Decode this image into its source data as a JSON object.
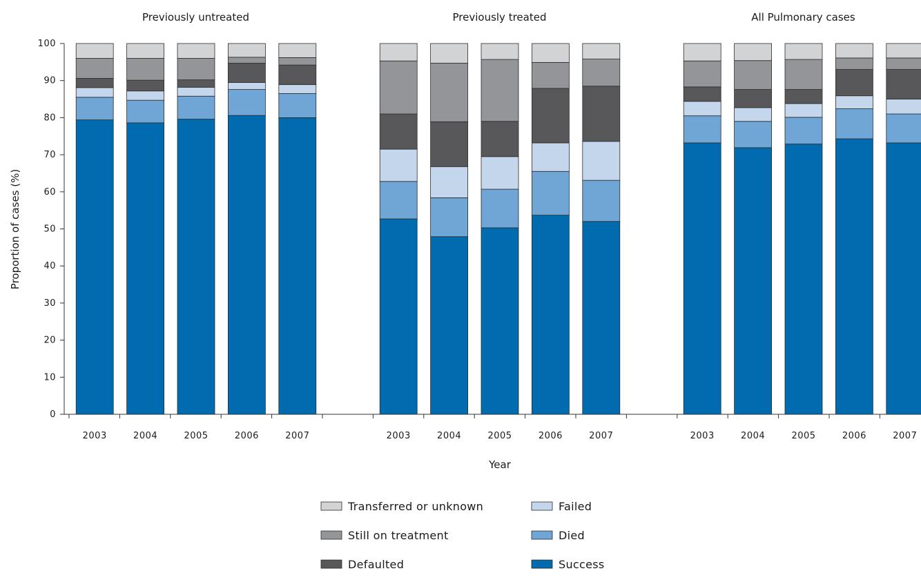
{
  "chart_data": {
    "type": "bar",
    "stacked": true,
    "xlabel": "Year",
    "ylabel": "Proportion of cases (%)",
    "ylim": [
      0,
      100
    ],
    "yticks": [
      0,
      10,
      20,
      30,
      40,
      50,
      60,
      70,
      80,
      90,
      100
    ],
    "grid": false,
    "legend_position": "bottom-center",
    "series": [
      {
        "name": "Success",
        "color": "#006bae"
      },
      {
        "name": "Died",
        "color": "#6fa6d6"
      },
      {
        "name": "Failed",
        "color": "#c3d6ec"
      },
      {
        "name": "Defaulted",
        "color": "#58585a"
      },
      {
        "name": "Still on treatment",
        "color": "#939598"
      },
      {
        "name": "Transferred or unknown",
        "color": "#d2d3d5"
      }
    ],
    "groups": [
      {
        "title": "Previously untreated",
        "categories": [
          "2003",
          "2004",
          "2005",
          "2006",
          "2007"
        ],
        "values": {
          "Success": [
            79.4,
            78.6,
            79.6,
            80.6,
            80.0
          ],
          "Died": [
            6.1,
            6.1,
            6.2,
            7.0,
            6.5
          ],
          "Failed": [
            2.6,
            2.5,
            2.4,
            1.9,
            2.4
          ],
          "Defaulted": [
            2.5,
            2.9,
            2.0,
            5.2,
            5.3
          ],
          "Still on treatment": [
            5.4,
            5.9,
            5.8,
            1.6,
            2.0
          ],
          "Transferred or unknown": [
            4.0,
            4.0,
            4.0,
            3.7,
            3.8
          ]
        }
      },
      {
        "title": "Previously treated",
        "categories": [
          "2003",
          "2004",
          "2005",
          "2006",
          "2007"
        ],
        "values": {
          "Success": [
            52.7,
            47.9,
            50.3,
            53.7,
            52.0
          ],
          "Died": [
            10.1,
            10.5,
            10.4,
            11.8,
            11.1
          ],
          "Failed": [
            8.7,
            8.4,
            8.8,
            7.7,
            10.5
          ],
          "Defaulted": [
            9.5,
            12.1,
            9.5,
            14.7,
            14.9
          ],
          "Still on treatment": [
            14.3,
            15.8,
            16.7,
            7.0,
            7.3
          ],
          "Transferred or unknown": [
            4.7,
            5.3,
            4.3,
            5.1,
            4.2
          ]
        }
      },
      {
        "title": "All Pulmonary cases",
        "categories": [
          "2003",
          "2004",
          "2005",
          "2006",
          "2007"
        ],
        "values": {
          "Success": [
            73.2,
            71.9,
            72.9,
            74.3,
            73.2
          ],
          "Died": [
            7.3,
            7.1,
            7.2,
            8.1,
            7.8
          ],
          "Failed": [
            3.9,
            3.7,
            3.7,
            3.5,
            4.0
          ],
          "Defaulted": [
            3.9,
            4.9,
            3.8,
            7.1,
            8.0
          ],
          "Still on treatment": [
            7.0,
            7.8,
            8.1,
            3.1,
            3.1
          ],
          "Transferred or unknown": [
            4.7,
            4.6,
            4.3,
            3.9,
            3.9
          ]
        }
      }
    ],
    "legend_order": [
      "Transferred or unknown",
      "Failed",
      "Still on treatment",
      "Died",
      "Defaulted",
      "Success"
    ]
  }
}
